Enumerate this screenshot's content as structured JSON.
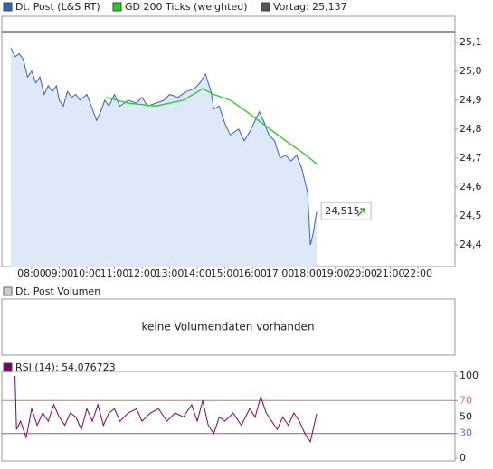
{
  "chart_data": [
    {
      "type": "line",
      "xlim": [
        6.92,
        23.34
      ],
      "xticks": [
        {
          "value": 8,
          "label": "08:00"
        },
        {
          "value": 9,
          "label": "09:00"
        },
        {
          "value": 10,
          "label": "10:00"
        },
        {
          "value": 11,
          "label": "11:00"
        },
        {
          "value": 12,
          "label": "12:00"
        },
        {
          "value": 13,
          "label": "13:00"
        },
        {
          "value": 14,
          "label": "14:00"
        },
        {
          "value": 15,
          "label": "15:00"
        },
        {
          "value": 16,
          "label": "16:00"
        },
        {
          "value": 17,
          "label": "17:00"
        },
        {
          "value": 18,
          "label": "18:00"
        },
        {
          "value": 19,
          "label": "19:00"
        },
        {
          "value": 20,
          "label": "20:00"
        },
        {
          "value": 21,
          "label": "21:00"
        },
        {
          "value": 22,
          "label": "22:00"
        }
      ],
      "ylim": [
        24.325,
        25.19
      ],
      "yticks": [
        {
          "value": 24.4,
          "label": "24,4"
        },
        {
          "value": 24.5,
          "label": "24,5"
        },
        {
          "value": 24.6,
          "label": "24,6"
        },
        {
          "value": 24.7,
          "label": "24,7"
        },
        {
          "value": 24.8,
          "label": "24,8"
        },
        {
          "value": 24.9,
          "label": "24,9"
        },
        {
          "value": 25.0,
          "label": "25,0"
        },
        {
          "value": 25.1,
          "label": "25,1"
        }
      ],
      "series": [
        {
          "name": "Dt. Post (L&S RT)",
          "color": "#3a62b0",
          "fill": "#dde8f8",
          "x": [
            7.25,
            7.4,
            7.55,
            7.7,
            7.85,
            8.0,
            8.15,
            8.3,
            8.45,
            8.6,
            8.75,
            8.9,
            9.0,
            9.15,
            9.3,
            9.45,
            9.6,
            9.75,
            10.0,
            10.2,
            10.35,
            10.5,
            10.65,
            10.8,
            11.0,
            11.2,
            11.5,
            11.8,
            12.0,
            12.2,
            12.5,
            12.8,
            13.0,
            13.3,
            13.6,
            13.9,
            14.1,
            14.3,
            14.5,
            14.6,
            14.8,
            15.0,
            15.2,
            15.5,
            15.7,
            15.9,
            16.1,
            16.25,
            16.4,
            16.6,
            16.8,
            17.0,
            17.2,
            17.4,
            17.6,
            17.8,
            17.9,
            18.0,
            18.1,
            18.2,
            18.33
          ],
          "values": [
            25.08,
            25.05,
            25.06,
            25.04,
            24.98,
            25.0,
            24.96,
            24.98,
            24.92,
            24.95,
            24.93,
            24.95,
            24.9,
            24.88,
            24.93,
            24.91,
            24.92,
            24.9,
            24.92,
            24.87,
            24.83,
            24.86,
            24.9,
            24.88,
            24.92,
            24.88,
            24.9,
            24.89,
            24.91,
            24.88,
            24.89,
            24.9,
            24.92,
            24.91,
            24.93,
            24.94,
            24.96,
            24.99,
            24.93,
            24.87,
            24.88,
            24.82,
            24.78,
            24.8,
            24.76,
            24.79,
            24.83,
            24.86,
            24.83,
            24.78,
            24.76,
            24.7,
            24.71,
            24.69,
            24.71,
            24.66,
            24.62,
            24.58,
            24.4,
            24.44,
            24.515
          ]
        },
        {
          "name": "GD 200 Ticks (weighted)",
          "color": "#22cc22",
          "x": [
            10.7,
            11.5,
            12.5,
            13.5,
            14.2,
            14.6,
            15.2,
            15.8,
            16.5,
            17.2,
            17.8,
            18.33
          ],
          "values": [
            24.91,
            24.89,
            24.88,
            24.9,
            24.94,
            24.92,
            24.9,
            24.86,
            24.81,
            24.76,
            24.72,
            24.68
          ]
        }
      ],
      "reference": {
        "name": "Vortag: 25,137",
        "value": 25.137,
        "color": "#555555"
      },
      "last_price": {
        "value": 24.515,
        "label": "24,515"
      }
    },
    {
      "type": "empty",
      "title": "Dt. Post Volumen",
      "message": "keine Volumendaten vorhanden"
    },
    {
      "type": "line",
      "xlim": [
        6.92,
        23.34
      ],
      "ylim": [
        -3.3,
        105.5
      ],
      "yticks": [
        0,
        30,
        50,
        70,
        100
      ],
      "bands": [
        {
          "value": 70,
          "color": "#e07070"
        },
        {
          "value": 30,
          "color": "#6666cc"
        }
      ],
      "series": [
        {
          "name": "RSI (14): 54,076723",
          "color": "#800060",
          "x": [
            7.4,
            7.45,
            7.6,
            7.8,
            8.0,
            8.2,
            8.4,
            8.6,
            8.8,
            9.0,
            9.2,
            9.4,
            9.6,
            9.8,
            10.0,
            10.2,
            10.4,
            10.6,
            10.8,
            11.0,
            11.2,
            11.5,
            11.8,
            12.0,
            12.3,
            12.6,
            12.9,
            13.2,
            13.5,
            13.8,
            14.0,
            14.2,
            14.4,
            14.6,
            14.8,
            15.0,
            15.3,
            15.6,
            15.9,
            16.1,
            16.3,
            16.5,
            16.7,
            16.9,
            17.1,
            17.3,
            17.5,
            17.7,
            17.9,
            18.1,
            18.2,
            18.33
          ],
          "values": [
            100,
            35,
            45,
            25,
            60,
            40,
            55,
            45,
            65,
            50,
            40,
            55,
            50,
            35,
            60,
            45,
            65,
            40,
            55,
            60,
            45,
            55,
            60,
            45,
            55,
            60,
            45,
            55,
            50,
            65,
            45,
            70,
            40,
            30,
            50,
            45,
            55,
            40,
            60,
            50,
            75,
            55,
            45,
            35,
            50,
            40,
            55,
            45,
            30,
            20,
            35,
            54
          ]
        }
      ]
    }
  ]
}
